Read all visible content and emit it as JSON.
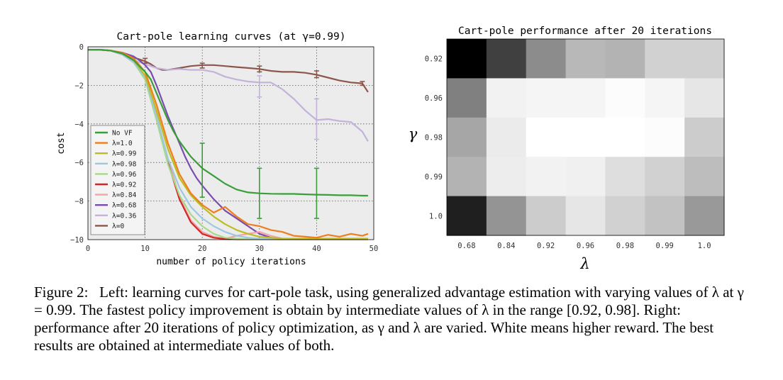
{
  "figure": {
    "left_chart": {
      "title": "Cart-pole learning curves (at γ=0.99)",
      "xlabel": "number of policy iterations",
      "ylabel": "cost",
      "xticks": [
        0,
        10,
        20,
        30,
        40,
        50
      ],
      "yticks": [
        0,
        -2,
        -4,
        -6,
        -8,
        -10
      ]
    },
    "right_chart": {
      "title": "Cart-pole performance after 20 iterations",
      "xlabel": "λ",
      "ylabel": "γ",
      "xticks": [
        "0.68",
        "0.84",
        "0.92",
        "0.96",
        "0.98",
        "0.99",
        "1.0"
      ],
      "yticks": [
        "0.92",
        "0.96",
        "0.98",
        "0.99",
        "1.0"
      ]
    }
  },
  "chart_data": [
    {
      "type": "line",
      "title": "Cart-pole learning curves (at γ=0.99)",
      "xlabel": "number of policy iterations",
      "ylabel": "cost",
      "xlim": [
        0,
        50
      ],
      "ylim": [
        -10,
        0
      ],
      "grid": true,
      "legend": "lower-left",
      "series": [
        {
          "name": "No VF",
          "color": "#3a9e3a",
          "x": [
            0,
            2,
            4,
            6,
            8,
            10,
            11,
            12,
            13,
            14,
            15,
            16,
            17,
            18,
            19,
            20,
            22,
            24,
            26,
            28,
            30,
            32,
            34,
            36,
            38,
            40,
            42,
            44,
            46,
            48,
            49
          ],
          "y": [
            -0.15,
            -0.15,
            -0.2,
            -0.35,
            -0.7,
            -1.3,
            -1.7,
            -2.4,
            -3.1,
            -3.8,
            -4.4,
            -4.9,
            -5.3,
            -5.7,
            -6.0,
            -6.3,
            -6.7,
            -7.1,
            -7.4,
            -7.55,
            -7.6,
            -7.62,
            -7.63,
            -7.63,
            -7.65,
            -7.67,
            -7.68,
            -7.7,
            -7.7,
            -7.72,
            -7.72
          ],
          "errorbars": [
            {
              "x": 20,
              "low": -7.8,
              "high": -5.0
            },
            {
              "x": 30,
              "low": -8.9,
              "high": -6.3
            },
            {
              "x": 40,
              "low": -8.9,
              "high": -6.3
            }
          ]
        },
        {
          "name": "λ=1.0",
          "color": "#f07d1e",
          "x": [
            0,
            2,
            4,
            6,
            8,
            10,
            12,
            14,
            16,
            18,
            20,
            22,
            24,
            26,
            28,
            30,
            32,
            34,
            36,
            38,
            40,
            42,
            44,
            46,
            48,
            49
          ],
          "y": [
            -0.15,
            -0.15,
            -0.2,
            -0.3,
            -0.6,
            -1.3,
            -3.0,
            -5.0,
            -6.6,
            -7.6,
            -8.2,
            -8.6,
            -8.3,
            -8.8,
            -9.2,
            -9.3,
            -9.5,
            -9.6,
            -9.8,
            -9.85,
            -9.9,
            -9.75,
            -9.85,
            -9.7,
            -9.8,
            -9.7
          ]
        },
        {
          "name": "λ=0.99",
          "color": "#bcbd22",
          "x": [
            0,
            2,
            4,
            6,
            8,
            10,
            12,
            14,
            16,
            18,
            20,
            22,
            24,
            26,
            28,
            30,
            32,
            34,
            36,
            38,
            40,
            42,
            44,
            46,
            48,
            49
          ],
          "y": [
            -0.15,
            -0.15,
            -0.2,
            -0.35,
            -0.7,
            -1.5,
            -3.3,
            -5.3,
            -6.8,
            -7.7,
            -8.3,
            -8.8,
            -9.2,
            -9.5,
            -9.7,
            -9.85,
            -9.9,
            -9.95,
            -9.95,
            -9.95,
            -9.95,
            -9.95,
            -9.95,
            -9.95,
            -9.95,
            -9.95
          ]
        },
        {
          "name": "λ=0.98",
          "color": "#9ec8e0",
          "x": [
            0,
            2,
            4,
            6,
            8,
            10,
            12,
            14,
            16,
            18,
            20,
            22,
            24,
            26,
            28,
            30,
            32,
            34,
            36,
            38,
            40,
            42,
            44,
            46,
            48,
            49
          ],
          "y": [
            -0.15,
            -0.15,
            -0.2,
            -0.4,
            -0.8,
            -1.6,
            -3.6,
            -5.8,
            -7.3,
            -8.3,
            -8.9,
            -9.3,
            -9.6,
            -9.8,
            -9.9,
            -9.95,
            -9.97,
            -9.97,
            -9.97,
            -9.97,
            -9.97,
            -9.97,
            -9.97,
            -9.97,
            -9.97,
            -9.97
          ]
        },
        {
          "name": "λ=0.96",
          "color": "#a7d98a",
          "x": [
            0,
            2,
            4,
            6,
            8,
            10,
            12,
            14,
            16,
            18,
            20,
            22,
            24,
            26,
            28,
            30,
            32,
            34,
            36,
            38,
            40,
            42,
            44,
            46,
            48,
            49
          ],
          "y": [
            -0.15,
            -0.15,
            -0.2,
            -0.4,
            -0.8,
            -1.7,
            -3.8,
            -6.1,
            -7.7,
            -8.7,
            -9.3,
            -9.7,
            -9.9,
            -9.95,
            -9.98,
            -9.98,
            -9.98,
            -9.98,
            -9.98,
            -9.98,
            -9.98,
            -9.98,
            -9.98,
            -9.98,
            -9.98,
            -9.98
          ]
        },
        {
          "name": "λ=0.92",
          "color": "#d62728",
          "x": [
            0,
            2,
            4,
            6,
            8,
            10,
            12,
            14,
            16,
            18,
            20,
            22,
            24,
            26,
            28,
            30,
            32,
            34,
            36,
            38,
            40,
            42,
            44,
            46,
            48,
            49
          ],
          "y": [
            -0.15,
            -0.15,
            -0.2,
            -0.4,
            -0.8,
            -1.6,
            -3.6,
            -6.0,
            -7.9,
            -9.1,
            -9.7,
            -9.9,
            -9.97,
            -9.98,
            -9.98,
            -9.98,
            -9.98,
            -9.98,
            -9.98,
            -9.98,
            -9.98,
            -9.98,
            -9.98,
            -9.98,
            -9.98,
            -9.98
          ]
        },
        {
          "name": "λ=0.84",
          "color": "#f2a3a3",
          "x": [
            0,
            2,
            4,
            6,
            8,
            10,
            12,
            14,
            16,
            18,
            20,
            22,
            24,
            26,
            28,
            30,
            32,
            34,
            36,
            38,
            40,
            42,
            44,
            46,
            48,
            49
          ],
          "y": [
            -0.15,
            -0.15,
            -0.2,
            -0.4,
            -0.8,
            -1.6,
            -3.6,
            -5.8,
            -7.8,
            -9.0,
            -9.6,
            -9.85,
            -9.95,
            -9.8,
            -9.7,
            -9.6,
            -9.8,
            -9.95,
            -9.98,
            -9.98,
            -9.98,
            -9.98,
            -9.98,
            -9.98,
            -9.98,
            -9.98
          ]
        },
        {
          "name": "λ=0.68",
          "color": "#7b4cae",
          "x": [
            0,
            2,
            4,
            6,
            8,
            9,
            10,
            11,
            12,
            13,
            14,
            15,
            16,
            17,
            18,
            19,
            20,
            22,
            24,
            26,
            28,
            30,
            32,
            34,
            36,
            38,
            40,
            42,
            44,
            46,
            48,
            49
          ],
          "y": [
            -0.15,
            -0.15,
            -0.2,
            -0.3,
            -0.5,
            -0.7,
            -0.95,
            -1.3,
            -2.0,
            -2.8,
            -3.6,
            -4.3,
            -5.0,
            -5.7,
            -6.3,
            -6.8,
            -7.2,
            -7.9,
            -8.5,
            -8.9,
            -9.3,
            -9.7,
            -9.9,
            -9.95,
            -9.97,
            -9.97,
            -9.97,
            -9.97,
            -9.97,
            -9.97,
            -9.97,
            -9.97
          ]
        },
        {
          "name": "λ=0.36",
          "color": "#c3b2d9",
          "x": [
            0,
            2,
            4,
            6,
            8,
            10,
            12,
            14,
            16,
            18,
            20,
            22,
            24,
            26,
            28,
            30,
            32,
            34,
            36,
            38,
            40,
            42,
            44,
            46,
            48,
            49
          ],
          "y": [
            -0.15,
            -0.15,
            -0.2,
            -0.4,
            -0.7,
            -0.9,
            -1.1,
            -1.2,
            -1.15,
            -1.2,
            -1.2,
            -1.3,
            -1.55,
            -1.7,
            -1.8,
            -1.85,
            -1.85,
            -2.2,
            -2.7,
            -3.3,
            -3.8,
            -3.75,
            -3.85,
            -3.9,
            -4.4,
            -4.9
          ],
          "errorbars": [
            {
              "x": 30,
              "low": -2.6,
              "high": -1.5
            },
            {
              "x": 40,
              "low": -4.8,
              "high": -2.7
            }
          ]
        },
        {
          "name": "λ=0",
          "color": "#8c564b",
          "x": [
            0,
            2,
            4,
            6,
            8,
            10,
            11,
            12,
            13,
            14,
            16,
            18,
            20,
            22,
            24,
            26,
            28,
            30,
            32,
            34,
            36,
            38,
            40,
            42,
            44,
            46,
            48,
            49
          ],
          "y": [
            -0.15,
            -0.15,
            -0.2,
            -0.35,
            -0.55,
            -0.75,
            -0.9,
            -1.1,
            -1.2,
            -1.2,
            -1.1,
            -1.0,
            -0.95,
            -0.95,
            -1.0,
            -1.05,
            -1.1,
            -1.15,
            -1.25,
            -1.3,
            -1.3,
            -1.35,
            -1.45,
            -1.6,
            -1.75,
            -1.85,
            -1.9,
            -2.35
          ],
          "errorbars": [
            {
              "x": 10,
              "low": -0.85,
              "high": -0.6
            },
            {
              "x": 20,
              "low": -1.1,
              "high": -0.85
            },
            {
              "x": 30,
              "low": -1.3,
              "high": -1.0
            },
            {
              "x": 40,
              "low": -1.6,
              "high": -1.25
            },
            {
              "x": 48,
              "low": -2.0,
              "high": -1.8
            }
          ]
        }
      ]
    },
    {
      "type": "heatmap",
      "title": "Cart-pole performance after 20 iterations",
      "xlabel": "λ",
      "ylabel": "γ",
      "x_categories": [
        "0.68",
        "0.84",
        "0.92",
        "0.96",
        "0.98",
        "0.99",
        "1.0"
      ],
      "y_categories": [
        "0.92",
        "0.96",
        "0.98",
        "0.99",
        "1.0"
      ],
      "colormap": "gray (white = higher reward)",
      "values": [
        [
          0.0,
          0.25,
          0.55,
          0.72,
          0.7,
          0.82,
          0.82
        ],
        [
          0.5,
          0.95,
          0.96,
          0.96,
          0.99,
          0.96,
          0.9
        ],
        [
          0.65,
          0.92,
          1.0,
          1.0,
          1.0,
          0.99,
          0.8
        ],
        [
          0.7,
          0.93,
          0.95,
          0.94,
          0.87,
          0.82,
          0.74
        ],
        [
          0.12,
          0.58,
          0.8,
          0.9,
          0.82,
          0.76,
          0.6
        ]
      ]
    }
  ],
  "caption": {
    "text": "Figure 2:  Left: learning curves for cart-pole task, using generalized advantage estimation with varying values of λ at γ = 0.99. The fastest policy improvement is obtain by intermediate values of λ in the range [0.92, 0.98]. Right: performance after 20 iterations of policy optimization, as γ and λ are varied. White means higher reward. The best results are obtained at intermediate values of both."
  }
}
